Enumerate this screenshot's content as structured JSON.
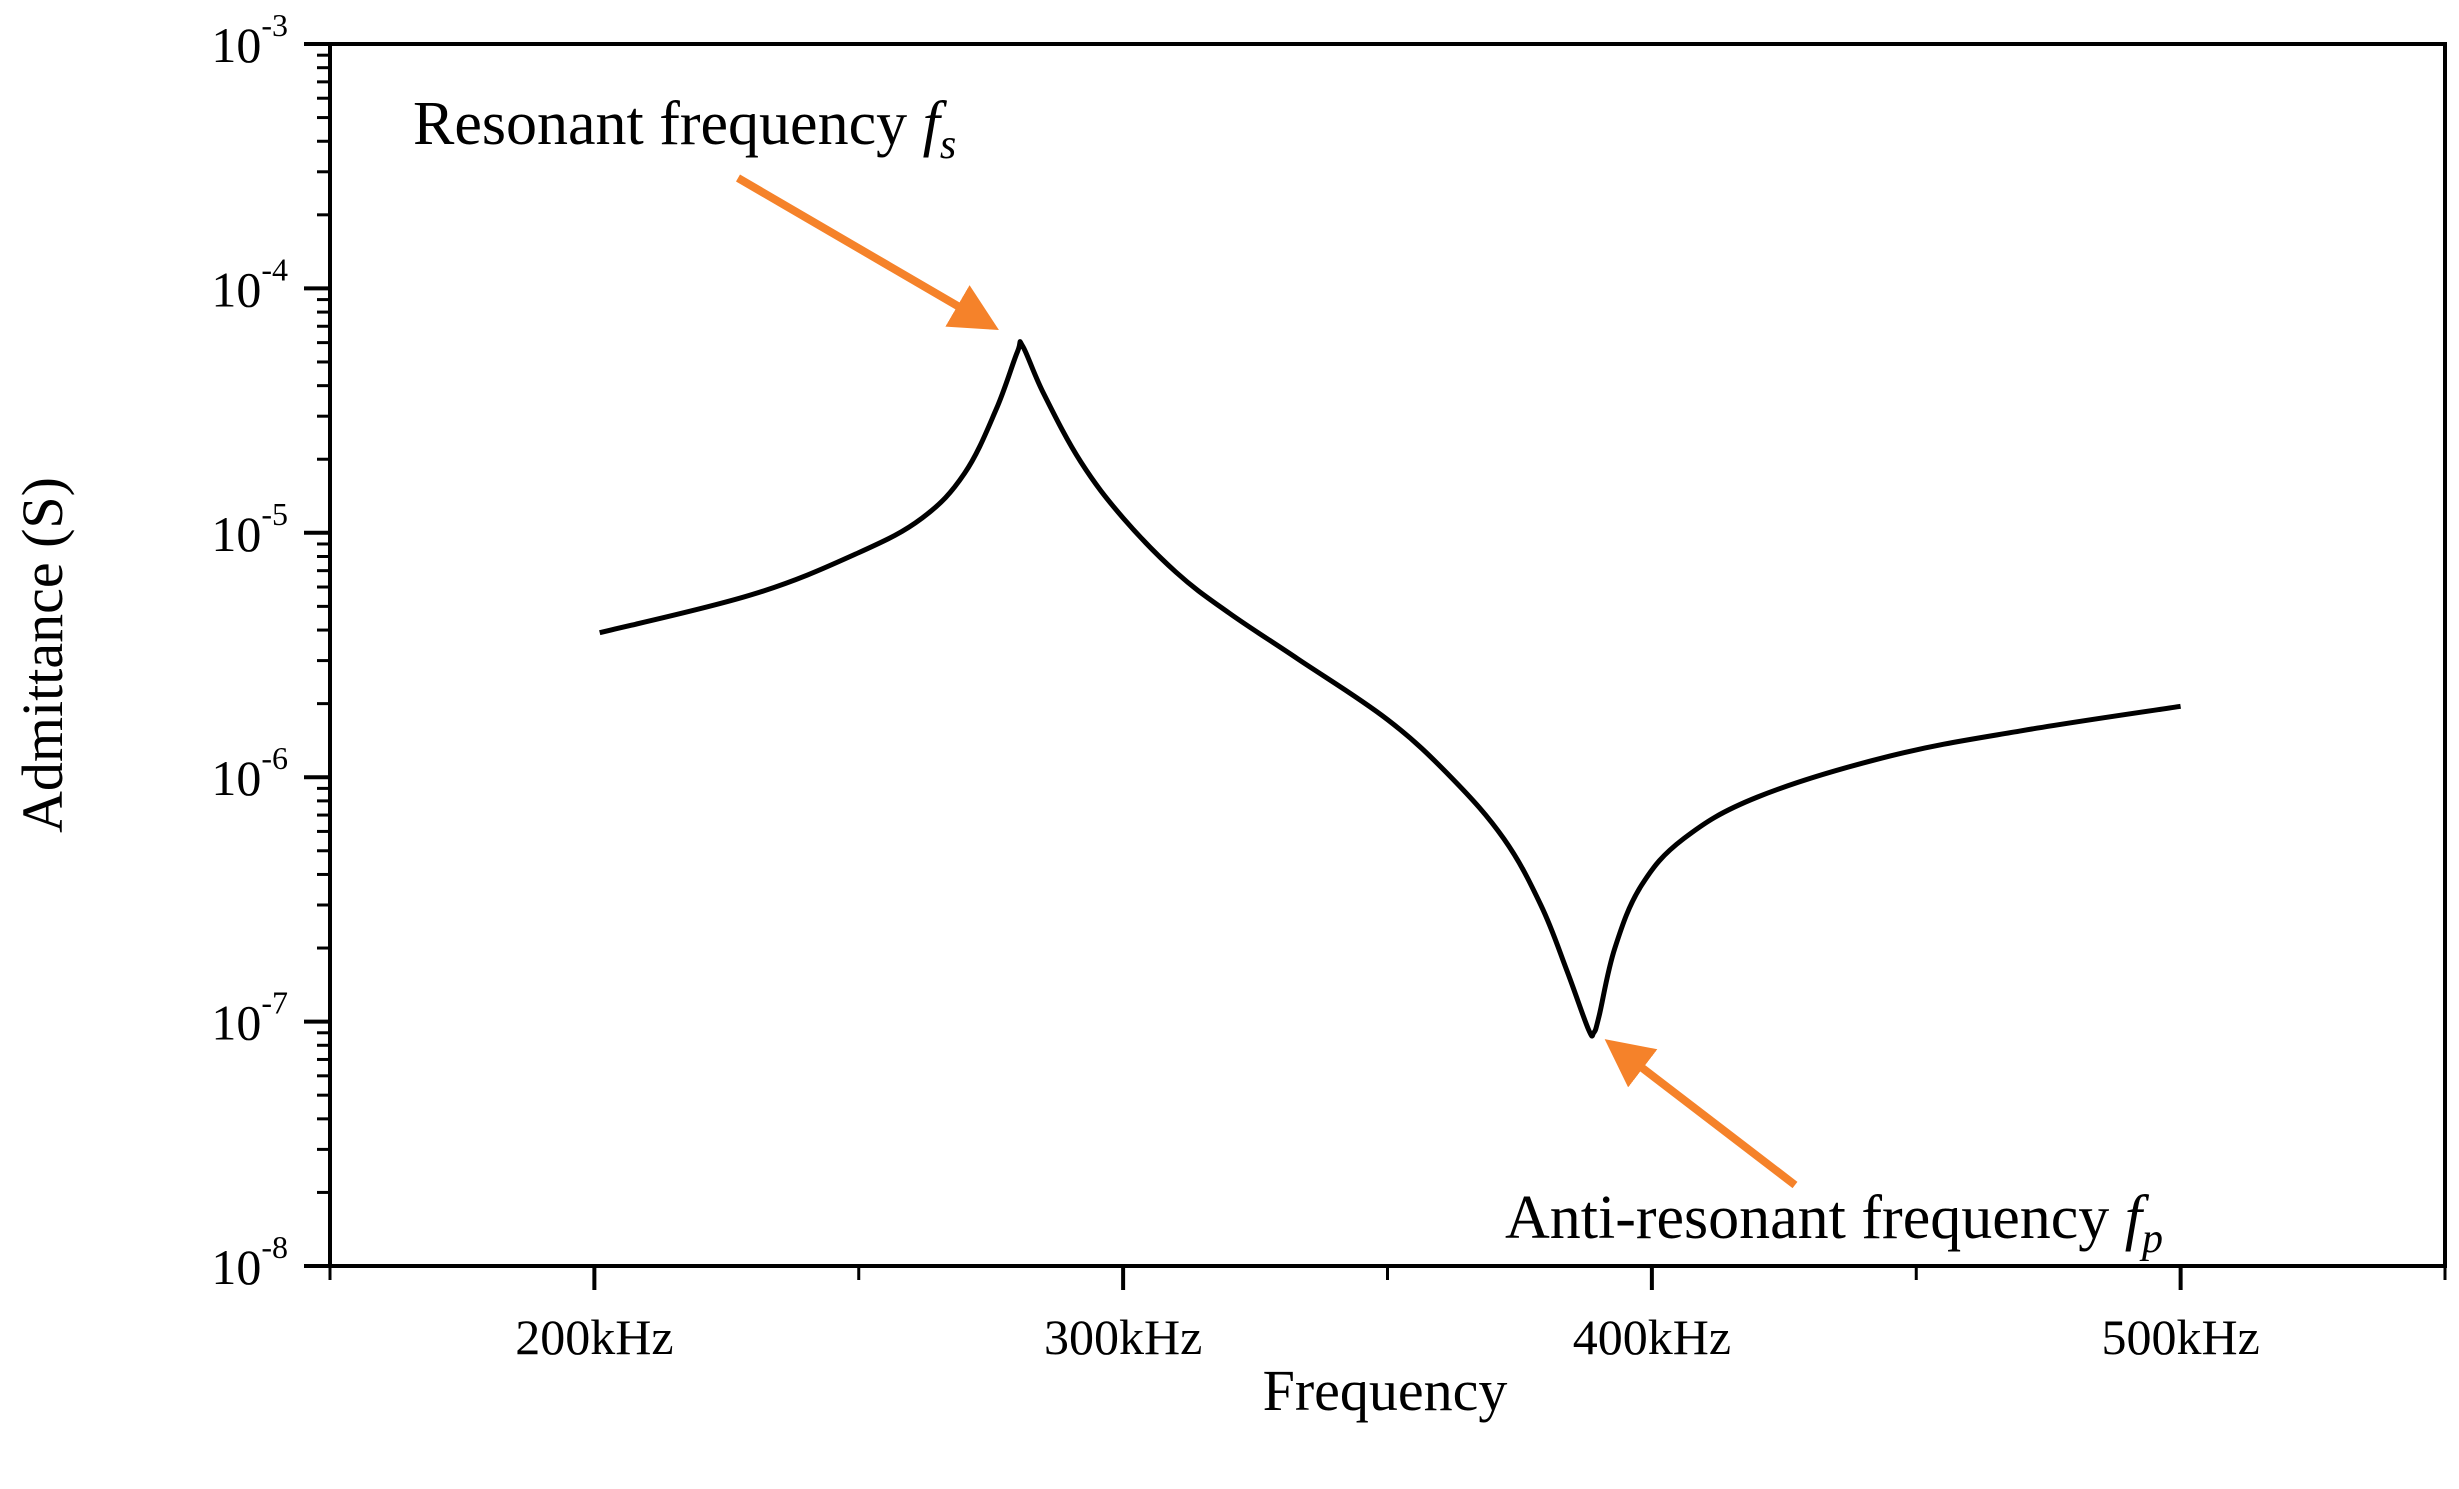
{
  "colors": {
    "curve": "#000000",
    "axis": "#000000",
    "arrow": "#F5822A"
  },
  "chart_data": {
    "type": "line",
    "title": "",
    "xlabel": "Frequency",
    "ylabel": "Admittance (S)",
    "xlim": [
      150,
      550
    ],
    "ylim_log10": [
      -8,
      -3
    ],
    "yscale": "log",
    "x_ticks": [
      {
        "value": 200,
        "label": "200kHz"
      },
      {
        "value": 300,
        "label": "300kHz"
      },
      {
        "value": 400,
        "label": "400kHz"
      },
      {
        "value": 500,
        "label": "500kHz"
      }
    ],
    "x_minor_ticks": [
      150,
      250,
      350,
      450,
      550
    ],
    "y_ticks": [
      {
        "exp": -8,
        "base": "10",
        "sup": "-8"
      },
      {
        "exp": -7,
        "base": "10",
        "sup": "-7"
      },
      {
        "exp": -6,
        "base": "10",
        "sup": "-6"
      },
      {
        "exp": -5,
        "base": "10",
        "sup": "-5"
      },
      {
        "exp": -4,
        "base": "10",
        "sup": "-4"
      },
      {
        "exp": -3,
        "base": "10",
        "sup": "-3"
      }
    ],
    "series": [
      {
        "name": "Admittance",
        "x_unit": "kHz",
        "x": [
          201,
          230,
          250,
          262,
          270,
          276,
          280,
          281,
          285,
          292,
          300,
          310,
          320,
          333,
          350,
          362,
          372,
          379,
          384,
          388,
          389,
          390,
          393,
          398,
          406,
          420,
          445,
          470,
          500
        ],
        "y": [
          3.9e-06,
          5.6e-06,
          8.3e-06,
          1.15e-05,
          1.75e-05,
          3.2e-05,
          5.5e-05,
          5.8e-05,
          3.7e-05,
          1.95e-05,
          1.15e-05,
          6.9e-06,
          4.7e-06,
          3.05e-06,
          1.72e-06,
          1e-06,
          5.6e-07,
          3e-07,
          1.6e-07,
          9.3e-08,
          9e-08,
          1.05e-07,
          2e-07,
          3.6e-07,
          5.6e-07,
          8.3e-07,
          1.22e-06,
          1.55e-06,
          1.95e-06
        ]
      }
    ],
    "annotations": [
      {
        "text": "Resonant frequency ",
        "symbol": "f",
        "subscript": "s",
        "target_x": 280,
        "target_y": 5.8e-05,
        "placement": "upper-left of peak"
      },
      {
        "text": "Anti-resonant frequency ",
        "symbol": "f",
        "subscript": "p",
        "target_x": 389,
        "target_y": 9e-08,
        "placement": "lower-right of dip"
      }
    ]
  }
}
